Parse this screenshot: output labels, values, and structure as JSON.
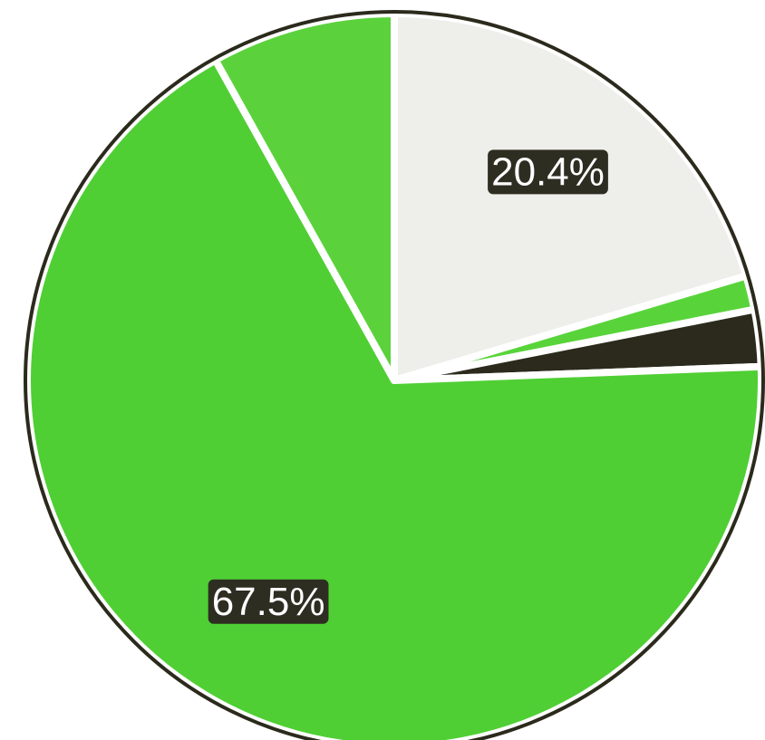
{
  "chart_data": {
    "type": "pie",
    "values": [
      20.4,
      1.5,
      2.5,
      67.5,
      8.1
    ],
    "value_labels": [
      "20.4%",
      null,
      null,
      "67.5%",
      null
    ],
    "colors": [
      "#eeeeea",
      "#58d43a",
      "#2b2a1c",
      "#4fcf34",
      "#5bd23c"
    ]
  }
}
